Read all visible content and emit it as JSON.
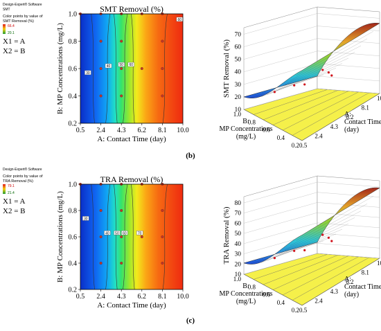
{
  "chart_data": [
    {
      "type": "contour",
      "software_note": [
        "Design-Expert® Software",
        "SMT"
      ],
      "color_legend_title": [
        "Color points by value of",
        "SMT Removal (%)"
      ],
      "legend_high": "66.4",
      "legend_low": "20.1",
      "factor_a": "X1 = A",
      "factor_b": "X2 = B",
      "title": "SMT Removal (%)",
      "xlabel": "A: Contact Time (day)",
      "ylabel": "B: MP Concentrations (mg/L)",
      "x_ticks": [
        "0.5",
        "2.4",
        "4.3",
        "6.2",
        "8.1",
        "10.0"
      ],
      "y_ticks": [
        "0.2",
        "0.4",
        "0.6",
        "0.8",
        "1.0"
      ],
      "xlim": [
        0.5,
        10.0
      ],
      "ylim": [
        0.2,
        1.0
      ],
      "contour_labels": [
        {
          "text": "30",
          "x": 1.2,
          "y": 0.57
        },
        {
          "text": "40",
          "x": 3.1,
          "y": 0.62
        },
        {
          "text": "50",
          "x": 4.3,
          "y": 0.63
        },
        {
          "text": "60",
          "x": 5.2,
          "y": 0.63
        },
        {
          "text": "60",
          "x": 9.7,
          "y": 0.96
        }
      ],
      "design_points": [
        {
          "x": 0.5,
          "y": 1.0
        },
        {
          "x": 2.4,
          "y": 1.0
        },
        {
          "x": 4.3,
          "y": 1.0
        },
        {
          "x": 6.2,
          "y": 1.0
        },
        {
          "x": 8.1,
          "y": 1.0
        },
        {
          "x": 2.4,
          "y": 0.8
        },
        {
          "x": 4.3,
          "y": 0.8
        },
        {
          "x": 8.1,
          "y": 0.8
        },
        {
          "x": 2.4,
          "y": 0.6
        },
        {
          "x": 4.3,
          "y": 0.6
        },
        {
          "x": 6.2,
          "y": 0.6
        },
        {
          "x": 8.1,
          "y": 0.6
        },
        {
          "x": 2.4,
          "y": 0.4
        },
        {
          "x": 4.3,
          "y": 0.4
        },
        {
          "x": 8.1,
          "y": 0.4
        }
      ],
      "panel_label": "(b)",
      "surface": {
        "zlabel": "SMT Removal (%)",
        "z_ticks": [
          "10",
          "20",
          "30",
          "40",
          "50",
          "60",
          "70"
        ],
        "x_axis_label": [
          "A:",
          "Contact Time",
          "(day)"
        ],
        "x_ticks": [
          "0.5",
          "2.4",
          "4.3",
          "6.2",
          "8.1",
          "10.0"
        ],
        "y_axis_label": [
          "B:",
          "MP Concentrations",
          "(mg/L)"
        ],
        "y_ticks": [
          "1.0",
          "0.8",
          "0.6",
          "0.4",
          "0.2"
        ],
        "zlim": [
          10,
          70
        ],
        "z_min": 20,
        "z_max": 66
      }
    },
    {
      "type": "contour",
      "software_note": [
        "Design-Expert® Software"
      ],
      "color_legend_title": [
        "Color points by value of",
        "TRA Removal (%)"
      ],
      "legend_high": "79.1",
      "legend_low": "21.4",
      "factor_a": "X1 = A",
      "factor_b": "X2 = B",
      "title": "TRA Removal (%)",
      "xlabel": "A: Contact Time (day)",
      "ylabel": "B: MP Concentrations (mg/L)",
      "x_ticks": [
        "0.5",
        "2.4",
        "4.3",
        "6.2",
        "8.1",
        "10.0"
      ],
      "y_ticks": [
        "0.2",
        "0.4",
        "0.6",
        "0.8",
        "1.0"
      ],
      "xlim": [
        0.5,
        10.0
      ],
      "ylim": [
        0.2,
        1.0
      ],
      "contour_labels": [
        {
          "text": "30",
          "x": 1.0,
          "y": 0.74
        },
        {
          "text": "40",
          "x": 3.0,
          "y": 0.63
        },
        {
          "text": "50",
          "x": 3.9,
          "y": 0.63
        },
        {
          "text": "60",
          "x": 4.6,
          "y": 0.63
        },
        {
          "text": "70",
          "x": 6.0,
          "y": 0.63
        }
      ],
      "design_points": [
        {
          "x": 0.5,
          "y": 1.0
        },
        {
          "x": 2.4,
          "y": 1.0
        },
        {
          "x": 4.3,
          "y": 1.0
        },
        {
          "x": 6.2,
          "y": 1.0
        },
        {
          "x": 8.1,
          "y": 1.0
        },
        {
          "x": 2.4,
          "y": 0.8
        },
        {
          "x": 4.3,
          "y": 0.8
        },
        {
          "x": 8.1,
          "y": 0.8
        },
        {
          "x": 2.4,
          "y": 0.6
        },
        {
          "x": 4.3,
          "y": 0.6
        },
        {
          "x": 6.2,
          "y": 0.6
        },
        {
          "x": 8.1,
          "y": 0.6
        },
        {
          "x": 2.4,
          "y": 0.4
        },
        {
          "x": 4.3,
          "y": 0.4
        },
        {
          "x": 8.1,
          "y": 0.4
        }
      ],
      "panel_label": "(c)",
      "surface": {
        "zlabel": "TRA Removal (%)",
        "z_ticks": [
          "10",
          "20",
          "30",
          "40",
          "50",
          "60",
          "70",
          "80"
        ],
        "x_axis_label": [
          "A:",
          "Contact Time",
          "(day)"
        ],
        "x_ticks": [
          "0.5",
          "2.4",
          "4.3",
          "6.2",
          "8.1",
          "10.0"
        ],
        "y_axis_label": [
          "B:",
          "MP Concentrations",
          "(mg/L)"
        ],
        "y_ticks": [
          "1.0",
          "0.8",
          "0.6",
          "0.4",
          "0.2"
        ],
        "zlim": [
          10,
          80
        ],
        "z_min": 21,
        "z_max": 79
      }
    }
  ]
}
